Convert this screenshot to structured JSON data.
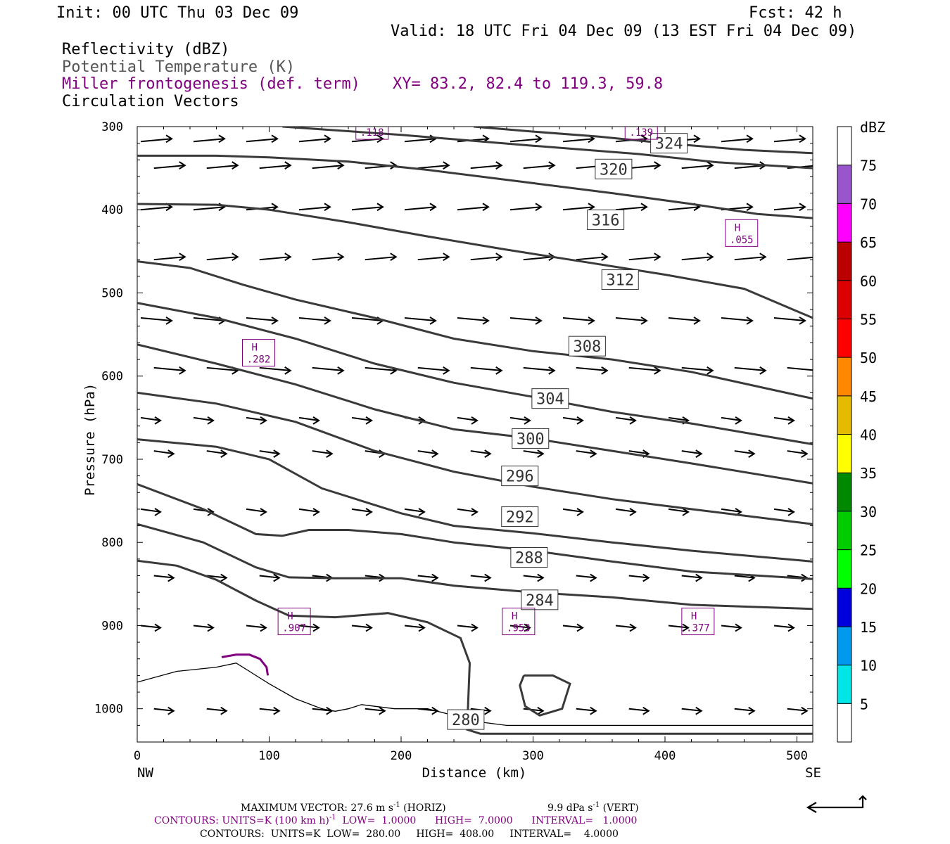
{
  "header": {
    "init": "Init: 00 UTC Thu 03 Dec 09",
    "fcst": "Fcst:   42 h",
    "valid": "Valid: 18 UTC Fri 04 Dec 09 (13 EST Fri 04 Dec 09)",
    "field1": "Reflectivity (dBZ)",
    "field2": "Potential Temperature (K)",
    "field3": "Miller frontogenesis (def. term)",
    "xy": "XY=  83.2, 82.4 to 119.3, 59.8",
    "field4": "Circulation Vectors"
  },
  "colors": {
    "theta": "#3a3a3a",
    "fronto": "#800080",
    "frame": "#000000"
  },
  "chart_data": {
    "type": "cross-section",
    "xlabel": "Distance (km)",
    "ylabel": "Pressure (hPa)",
    "xlim": [
      0,
      512
    ],
    "ylim": [
      300,
      1040
    ],
    "x_ticks": [
      0,
      100,
      200,
      300,
      400,
      500
    ],
    "x_tick_labels": [
      "0",
      "100",
      "200",
      "300",
      "400",
      "500"
    ],
    "y_ticks": [
      300,
      400,
      500,
      600,
      700,
      800,
      900,
      1000
    ],
    "y_tick_labels": [
      "300",
      "400",
      "500",
      "600",
      "700",
      "800",
      "900",
      "1000"
    ],
    "x_endpoints": {
      "left": "NW",
      "right": "SE"
    },
    "theta_contours": [
      {
        "label": "324",
        "points": [
          [
            255,
            300
          ],
          [
            300,
            306
          ],
          [
            350,
            312
          ],
          [
            400,
            320
          ],
          [
            460,
            328
          ],
          [
            512,
            332
          ]
        ],
        "label_at": [
          403,
          320
        ]
      },
      {
        "label": "320",
        "points": [
          [
            110,
            300
          ],
          [
            200,
            310
          ],
          [
            300,
            323
          ],
          [
            380,
            333
          ],
          [
            440,
            343
          ],
          [
            512,
            350
          ]
        ],
        "label_at": [
          361,
          351
        ]
      },
      {
        "label": "316",
        "points": [
          [
            0,
            335
          ],
          [
            60,
            335
          ],
          [
            100,
            337
          ],
          [
            160,
            342
          ],
          [
            220,
            352
          ],
          [
            300,
            368
          ],
          [
            360,
            380
          ],
          [
            420,
            393
          ],
          [
            470,
            405
          ],
          [
            512,
            410
          ]
        ],
        "label_at": [
          355,
          412
        ]
      },
      {
        "label": "312",
        "points": [
          [
            0,
            393
          ],
          [
            60,
            394
          ],
          [
            100,
            400
          ],
          [
            160,
            415
          ],
          [
            220,
            432
          ],
          [
            280,
            448
          ],
          [
            340,
            463
          ],
          [
            400,
            478
          ],
          [
            460,
            495
          ],
          [
            512,
            530
          ]
        ],
        "label_at": [
          366,
          484
        ]
      },
      {
        "label": "308",
        "points": [
          [
            0,
            462
          ],
          [
            40,
            470
          ],
          [
            80,
            490
          ],
          [
            120,
            508
          ],
          [
            180,
            530
          ],
          [
            240,
            555
          ],
          [
            300,
            570
          ],
          [
            360,
            580
          ],
          [
            420,
            595
          ],
          [
            512,
            627
          ]
        ],
        "label_at": [
          341,
          564
        ]
      },
      {
        "label": "304",
        "points": [
          [
            0,
            512
          ],
          [
            60,
            530
          ],
          [
            120,
            555
          ],
          [
            180,
            585
          ],
          [
            240,
            608
          ],
          [
            300,
            625
          ],
          [
            360,
            643
          ],
          [
            420,
            657
          ],
          [
            512,
            682
          ]
        ],
        "label_at": [
          313,
          627
        ]
      },
      {
        "label": "300",
        "points": [
          [
            0,
            562
          ],
          [
            60,
            585
          ],
          [
            120,
            610
          ],
          [
            180,
            640
          ],
          [
            240,
            664
          ],
          [
            300,
            675
          ],
          [
            360,
            690
          ],
          [
            420,
            705
          ],
          [
            512,
            729
          ]
        ],
        "label_at": [
          298,
          675
        ]
      },
      {
        "label": "296",
        "points": [
          [
            0,
            620
          ],
          [
            60,
            633
          ],
          [
            120,
            655
          ],
          [
            180,
            690
          ],
          [
            240,
            715
          ],
          [
            300,
            733
          ],
          [
            360,
            748
          ],
          [
            420,
            760
          ],
          [
            512,
            778
          ]
        ],
        "label_at": [
          290,
          720
        ]
      },
      {
        "label": "292",
        "points": [
          [
            0,
            676
          ],
          [
            60,
            685
          ],
          [
            100,
            700
          ],
          [
            140,
            735
          ],
          [
            200,
            765
          ],
          [
            240,
            780
          ],
          [
            300,
            789
          ],
          [
            360,
            800
          ],
          [
            420,
            810
          ],
          [
            512,
            823
          ]
        ],
        "label_at": [
          290,
          769
        ]
      },
      {
        "label": "288",
        "points": [
          [
            0,
            730
          ],
          [
            50,
            760
          ],
          [
            90,
            790
          ],
          [
            110,
            792
          ],
          [
            130,
            785
          ],
          [
            160,
            785
          ],
          [
            200,
            790
          ],
          [
            240,
            800
          ],
          [
            300,
            810
          ],
          [
            360,
            823
          ],
          [
            420,
            835
          ],
          [
            512,
            844
          ]
        ],
        "label_at": [
          297,
          818
        ]
      },
      {
        "label": "284",
        "points": [
          [
            0,
            778
          ],
          [
            50,
            800
          ],
          [
            90,
            830
          ],
          [
            115,
            842
          ],
          [
            150,
            843
          ],
          [
            200,
            843
          ],
          [
            240,
            852
          ],
          [
            300,
            860
          ],
          [
            360,
            866
          ],
          [
            420,
            875
          ],
          [
            512,
            880
          ]
        ],
        "label_at": [
          305,
          869
        ]
      },
      {
        "label": "280",
        "points": [
          [
            0,
            822
          ],
          [
            30,
            828
          ],
          [
            60,
            845
          ],
          [
            90,
            870
          ],
          [
            115,
            888
          ],
          [
            150,
            890
          ],
          [
            190,
            885
          ],
          [
            220,
            896
          ],
          [
            245,
            915
          ],
          [
            252,
            945
          ],
          [
            250,
            1025
          ],
          [
            260,
            1030
          ],
          [
            512,
            1030
          ]
        ],
        "label_at": [
          249,
          1013
        ]
      }
    ],
    "theta_closed_contour": {
      "points": [
        [
          293,
          960
        ],
        [
          315,
          960
        ],
        [
          328,
          970
        ],
        [
          322,
          1000
        ],
        [
          305,
          1008
        ],
        [
          294,
          997
        ],
        [
          290,
          972
        ],
        [
          293,
          960
        ]
      ]
    },
    "fronto_maxima": [
      {
        "label": "H",
        "value": ".282",
        "x": 92,
        "y": 572
      },
      {
        "label": "H",
        "value": ".907",
        "x": 119,
        "y": 895
      },
      {
        "label": "H",
        "value": ".953",
        "x": 289,
        "y": 895
      },
      {
        "label": "H",
        "value": ".377",
        "x": 425,
        "y": 895
      },
      {
        "label": "H",
        "value": ".055",
        "x": 458,
        "y": 428
      }
    ],
    "fronto_partial_labels": [
      {
        "value": ".118",
        "x": 178,
        "y": 306
      },
      {
        "value": ".139",
        "x": 382,
        "y": 306
      }
    ],
    "fronto_contour": {
      "points": [
        [
          64,
          938
        ],
        [
          75,
          935
        ],
        [
          85,
          935
        ],
        [
          93,
          940
        ],
        [
          98,
          950
        ],
        [
          99,
          960
        ]
      ]
    },
    "terrain_line": {
      "points": [
        [
          0,
          968
        ],
        [
          30,
          955
        ],
        [
          60,
          950
        ],
        [
          75,
          945
        ],
        [
          85,
          955
        ],
        [
          100,
          970
        ],
        [
          120,
          988
        ],
        [
          140,
          1000
        ],
        [
          150,
          1003
        ],
        [
          160,
          1000
        ],
        [
          170,
          995
        ],
        [
          180,
          997
        ],
        [
          195,
          1000
        ],
        [
          220,
          1000
        ],
        [
          240,
          1008
        ],
        [
          255,
          1015
        ],
        [
          280,
          1020
        ],
        [
          320,
          1020
        ],
        [
          512,
          1020
        ]
      ]
    },
    "vector_rows_hpa": [
      318,
      338,
      350,
      380,
      400,
      440,
      460,
      500,
      530,
      560,
      590,
      610,
      650,
      670,
      690,
      730,
      760,
      800,
      840,
      870,
      900,
      940,
      1000,
      1020
    ],
    "colorbar": {
      "title": "dBZ",
      "levels": [
        "5",
        "10",
        "15",
        "20",
        "25",
        "30",
        "35",
        "40",
        "45",
        "50",
        "55",
        "60",
        "65",
        "70",
        "75"
      ],
      "colors": [
        "#ffffff",
        "#00e5e5",
        "#0099ee",
        "#0000dd",
        "#00ff00",
        "#00cc00",
        "#008800",
        "#ffff00",
        "#e5bb00",
        "#ff8800",
        "#ff0000",
        "#dd0000",
        "#bb0000",
        "#ff00ff",
        "#9955cc",
        "#ffffff"
      ]
    }
  },
  "footer": {
    "max_vector": "MAXIMUM VECTOR:  27.6 m s",
    "max_vector_exp": "-1",
    "max_vector_h": " (HORIZ)",
    "max_vector_v": "9.9 dPa s",
    "max_vector_v_exp": "-1",
    "max_vector_v2": " (VERT)",
    "contours1": "CONTOURS:  UNITS=K (100 km h)",
    "contours1_exp": "-1",
    "contours1_rest": "  LOW=  1.0000      HIGH=  7.0000      INTERVAL=   1.0000",
    "contours2": "CONTOURS:  UNITS=K  LOW=  280.00     HIGH=  408.00     INTERVAL=    4.0000"
  }
}
